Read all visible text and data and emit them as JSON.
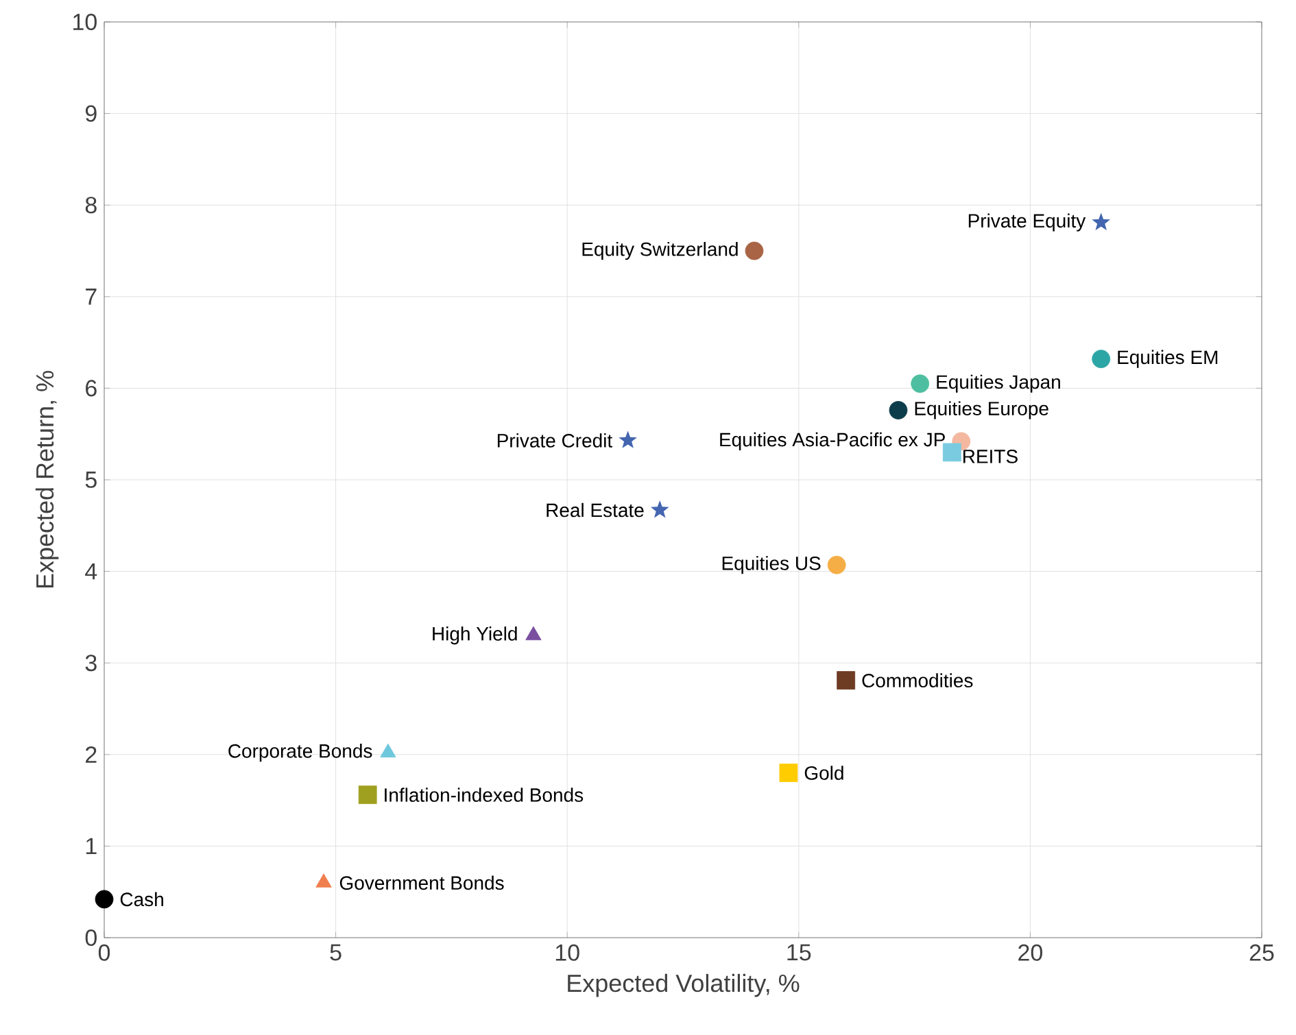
{
  "chart_data": {
    "type": "scatter",
    "xlabel": "Expected Volatility, %",
    "ylabel": "Expected Return, %",
    "xlim": [
      0,
      25
    ],
    "ylim": [
      0,
      10
    ],
    "xticks": [
      0,
      5,
      10,
      15,
      20,
      25
    ],
    "yticks": [
      0,
      1,
      2,
      3,
      4,
      5,
      6,
      7,
      8,
      9,
      10
    ],
    "grid": true,
    "series": [
      {
        "name": "Cash",
        "color": "#000000",
        "marker": "circle",
        "x": [
          0.0
        ],
        "values": [
          0.42
        ]
      },
      {
        "name": "Government Bonds",
        "color": "#f07f4f",
        "marker": "triangle",
        "x": [
          4.74
        ],
        "values": [
          0.6
        ]
      },
      {
        "name": "Inflation-indexed Bonds",
        "color": "#a0a020",
        "marker": "square",
        "x": [
          5.69
        ],
        "values": [
          1.56
        ]
      },
      {
        "name": "Corporate Bonds",
        "color": "#6ec8dc",
        "marker": "triangle",
        "x": [
          6.13
        ],
        "values": [
          2.02
        ]
      },
      {
        "name": "Gold",
        "color": "#ffcc00",
        "marker": "square",
        "x": [
          14.78
        ],
        "values": [
          1.8
        ]
      },
      {
        "name": "Commodities",
        "color": "#6e3b23",
        "marker": "square",
        "x": [
          16.02
        ],
        "values": [
          2.81
        ]
      },
      {
        "name": "High Yield",
        "color": "#7b4fa0",
        "marker": "triangle",
        "x": [
          9.27
        ],
        "values": [
          3.3
        ]
      },
      {
        "name": "Equities US",
        "color": "#f5ae45",
        "marker": "circle",
        "x": [
          15.82
        ],
        "values": [
          4.07
        ]
      },
      {
        "name": "Real Estate",
        "color": "#4466b0",
        "marker": "star",
        "x": [
          12.0
        ],
        "values": [
          4.67
        ]
      },
      {
        "name": "Private Credit",
        "color": "#4466b0",
        "marker": "star",
        "x": [
          11.31
        ],
        "values": [
          5.43
        ]
      },
      {
        "name": "Equities Asia-Pacific ex JP",
        "color": "#f4b8a0",
        "marker": "circle",
        "x": [
          18.51
        ],
        "values": [
          5.42
        ]
      },
      {
        "name": "REITS",
        "color": "#7acbe0",
        "marker": "square",
        "x": [
          18.31
        ],
        "values": [
          5.3
        ]
      },
      {
        "name": "Equities Europe",
        "color": "#0d3d4a",
        "marker": "circle",
        "x": [
          17.15
        ],
        "values": [
          5.76
        ]
      },
      {
        "name": "Equities Japan",
        "color": "#4dbfa0",
        "marker": "circle",
        "x": [
          17.62
        ],
        "values": [
          6.05
        ]
      },
      {
        "name": "Equities EM",
        "color": "#2ca6a4",
        "marker": "circle",
        "x": [
          21.53
        ],
        "values": [
          6.32
        ]
      },
      {
        "name": "Private Equity",
        "color": "#4466b0",
        "marker": "star",
        "x": [
          21.53
        ],
        "values": [
          7.81
        ]
      },
      {
        "name": "Equity Switzerland",
        "color": "#a86444",
        "marker": "circle",
        "x": [
          14.04
        ],
        "values": [
          7.5
        ]
      }
    ]
  }
}
